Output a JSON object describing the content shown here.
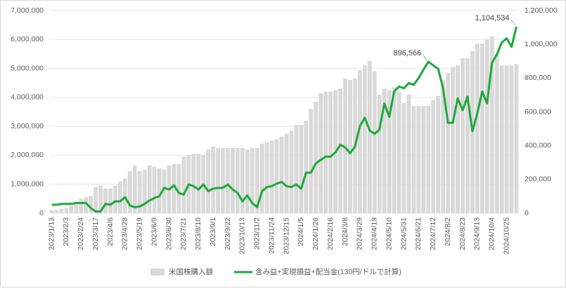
{
  "chart_data": {
    "type": "bar_line",
    "categories": [
      "2023/1/13",
      null,
      null,
      "2023/2/3",
      null,
      null,
      "2023/2/24",
      null,
      null,
      "2023/3/17",
      null,
      null,
      "2023/4/6",
      null,
      null,
      "2023/4/28",
      null,
      null,
      "2023/5/19",
      null,
      null,
      "2023/6/9",
      null,
      null,
      "2023/6/30",
      null,
      null,
      "2023/7/21",
      null,
      null,
      "2023/8/10",
      null,
      null,
      "2023/9/1",
      null,
      null,
      "2023/9/22",
      null,
      null,
      "2023/10/13",
      null,
      null,
      "2023/11/2",
      null,
      null,
      "2023/11/24",
      null,
      null,
      "2023/12/15",
      null,
      null,
      "2024/1/5",
      null,
      null,
      "2024/1/26",
      null,
      null,
      "2024/2/16",
      null,
      null,
      "2024/3/8",
      null,
      null,
      "2024/3/29",
      null,
      null,
      "2024/4/19",
      null,
      null,
      "2024/5/10",
      null,
      null,
      "2024/5/31",
      null,
      null,
      "2024/6/21",
      null,
      null,
      "2024/7/12",
      null,
      null,
      "2024/8/2",
      null,
      null,
      "2024/8/23",
      null,
      null,
      "2024/9/13",
      null,
      null,
      "2024/10/4",
      null,
      null,
      "2024/10/25",
      null,
      null
    ],
    "series": [
      {
        "name": "米国株購入額",
        "color": "#d9d9d9",
        "axis": "y",
        "values": [
          100000,
          120000,
          150000,
          180000,
          250000,
          300000,
          500000,
          550000,
          600000,
          900000,
          950000,
          850000,
          850000,
          950000,
          1100000,
          1200000,
          1450000,
          1650000,
          1450000,
          1500000,
          1650000,
          1600000,
          1550000,
          1500000,
          1650000,
          1700000,
          1700000,
          1950000,
          2000000,
          2050000,
          2050000,
          2000000,
          2200000,
          2300000,
          2250000,
          2250000,
          2250000,
          2250000,
          2250000,
          2250000,
          2200000,
          2250000,
          2250000,
          2400000,
          2450000,
          2500000,
          2550000,
          2650000,
          2750000,
          2850000,
          3050000,
          3050000,
          3200000,
          3600000,
          3850000,
          4150000,
          4200000,
          4200000,
          4250000,
          4300000,
          4650000,
          4600000,
          4650000,
          4950000,
          5100000,
          5250000,
          4900000,
          4100000,
          4300000,
          4250000,
          4350000,
          4200000,
          3800000,
          4100000,
          3700000,
          3700000,
          3700000,
          3700000,
          3900000,
          4050000,
          4600000,
          4850000,
          5050000,
          5100000,
          5350000,
          5350000,
          5600000,
          5850000,
          5850000,
          6000000,
          6100000,
          5500000,
          5100000,
          5100000,
          5100000,
          5150000
        ]
      },
      {
        "name": "含み益+実現損益+配当金(130円/ドルで計算)",
        "color": "#1ea83c",
        "axis": "y2",
        "values": [
          50000,
          50000,
          55000,
          55000,
          55000,
          60000,
          60000,
          60000,
          30000,
          10000,
          10000,
          55000,
          50000,
          70000,
          70000,
          95000,
          45000,
          35000,
          40000,
          55000,
          75000,
          90000,
          100000,
          150000,
          140000,
          165000,
          120000,
          110000,
          170000,
          160000,
          140000,
          170000,
          130000,
          145000,
          150000,
          150000,
          170000,
          140000,
          120000,
          70000,
          105000,
          60000,
          35000,
          130000,
          155000,
          160000,
          175000,
          185000,
          160000,
          155000,
          170000,
          145000,
          240000,
          240000,
          295000,
          315000,
          335000,
          335000,
          360000,
          405000,
          390000,
          355000,
          395000,
          515000,
          565000,
          490000,
          470000,
          495000,
          650000,
          570000,
          720000,
          750000,
          740000,
          770000,
          760000,
          800000,
          850000,
          896566,
          875000,
          855000,
          740000,
          535000,
          535000,
          680000,
          610000,
          690000,
          485000,
          590000,
          720000,
          650000,
          890000,
          940000,
          1010000,
          1035000,
          985000,
          1104534
        ],
        "value_labels": [
          null,
          null,
          null,
          null,
          null,
          null,
          null,
          null,
          null,
          null,
          null,
          null,
          null,
          null,
          null,
          null,
          null,
          null,
          null,
          null,
          null,
          null,
          null,
          null,
          null,
          null,
          null,
          null,
          null,
          null,
          null,
          null,
          null,
          null,
          null,
          null,
          null,
          null,
          null,
          null,
          null,
          null,
          null,
          null,
          null,
          null,
          null,
          null,
          null,
          null,
          null,
          null,
          null,
          null,
          null,
          null,
          null,
          null,
          null,
          null,
          null,
          null,
          null,
          null,
          null,
          null,
          null,
          null,
          null,
          null,
          null,
          null,
          null,
          null,
          null,
          null,
          null,
          "896,566",
          null,
          null,
          null,
          null,
          null,
          null,
          null,
          null,
          null,
          null,
          null,
          null,
          null,
          null,
          null,
          null,
          null,
          "1,104,534"
        ]
      }
    ],
    "ylim": [
      0,
      7000000
    ],
    "yticks": [
      0,
      {
        "value": 1000000,
        "label": "1,000,000"
      },
      {
        "value": 2000000,
        "label": "2,000,000"
      },
      {
        "value": 3000000,
        "label": "3,000,000"
      },
      {
        "value": 4000000,
        "label": "4,000,000"
      },
      {
        "value": 5000000,
        "label": "5,000,000"
      },
      {
        "value": 6000000,
        "label": "6,000,000"
      },
      {
        "value": 7000000,
        "label": "7,000,000"
      }
    ],
    "y2lim": [
      0,
      1200000
    ],
    "y2ticks": [
      0,
      {
        "value": 200000,
        "label": "200,000"
      },
      {
        "value": 400000,
        "label": "400,000"
      },
      {
        "value": 600000,
        "label": "600,000"
      },
      {
        "value": 800000,
        "label": "800,000"
      },
      {
        "value": 1000000,
        "label": "1,000,000"
      },
      {
        "value": 1200000,
        "label": "1,200,000"
      }
    ],
    "grid": true,
    "legend": "bottom"
  }
}
